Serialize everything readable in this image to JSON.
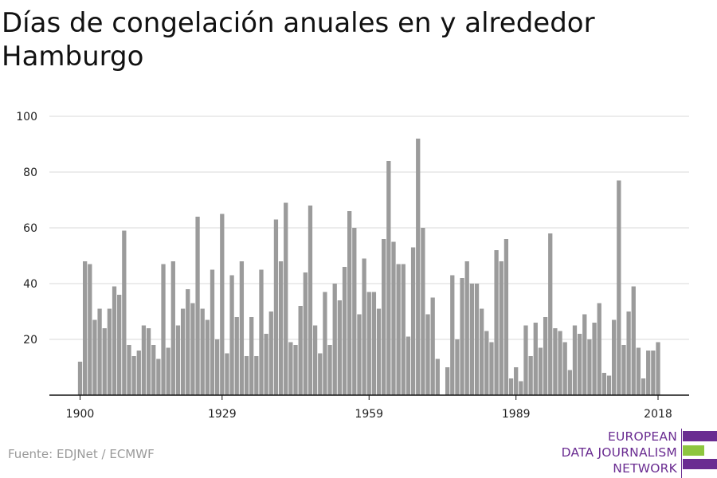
{
  "title": "Días de congelación anuales en y alrededor Hamburgo",
  "source": "Fuente: EDJNet / ECMWF",
  "logo": {
    "lines": [
      "EUROPEAN",
      "DATA JOURNALISM",
      "NETWORK"
    ],
    "colors": {
      "purple": "#6a2c91",
      "green": "#8dc63f"
    }
  },
  "colors": {
    "bar": "#9b9b9b",
    "grid": "#d9d9d9",
    "axis": "#111111"
  },
  "chart_data": {
    "type": "bar",
    "title": "Días de congelación anuales en y alrededor Hamburgo",
    "xlabel": "",
    "ylabel": "",
    "ylim": [
      0,
      100
    ],
    "yticks": [
      20,
      40,
      60,
      80,
      100
    ],
    "xticks": [
      1900,
      1929,
      1959,
      1989,
      2018
    ],
    "grid": true,
    "legend": "none",
    "x": [
      1900,
      1901,
      1902,
      1903,
      1904,
      1905,
      1906,
      1907,
      1908,
      1909,
      1910,
      1911,
      1912,
      1913,
      1914,
      1915,
      1916,
      1917,
      1918,
      1919,
      1920,
      1921,
      1922,
      1923,
      1924,
      1925,
      1926,
      1927,
      1928,
      1929,
      1930,
      1931,
      1932,
      1933,
      1934,
      1935,
      1936,
      1937,
      1938,
      1939,
      1940,
      1941,
      1942,
      1943,
      1944,
      1945,
      1946,
      1947,
      1948,
      1949,
      1950,
      1951,
      1952,
      1953,
      1954,
      1955,
      1956,
      1957,
      1958,
      1959,
      1960,
      1961,
      1962,
      1963,
      1964,
      1965,
      1966,
      1967,
      1968,
      1969,
      1970,
      1971,
      1972,
      1973,
      1974,
      1975,
      1976,
      1977,
      1978,
      1979,
      1980,
      1981,
      1982,
      1983,
      1984,
      1985,
      1986,
      1987,
      1988,
      1989,
      1990,
      1991,
      1992,
      1993,
      1994,
      1995,
      1996,
      1997,
      1998,
      1999,
      2000,
      2001,
      2002,
      2003,
      2004,
      2005,
      2006,
      2007,
      2008,
      2009,
      2010,
      2011,
      2012,
      2013,
      2014,
      2015,
      2016,
      2017,
      2018
    ],
    "values": [
      12,
      48,
      47,
      27,
      31,
      24,
      31,
      39,
      36,
      59,
      18,
      14,
      16,
      25,
      24,
      18,
      13,
      47,
      17,
      48,
      25,
      31,
      38,
      33,
      64,
      31,
      27,
      45,
      20,
      65,
      15,
      43,
      28,
      48,
      14,
      28,
      14,
      45,
      22,
      30,
      63,
      48,
      69,
      19,
      18,
      32,
      44,
      68,
      25,
      15,
      37,
      18,
      40,
      34,
      46,
      66,
      60,
      29,
      49,
      37,
      37,
      31,
      56,
      84,
      55,
      47,
      47,
      21,
      53,
      92,
      60,
      29,
      35,
      13,
      0,
      10,
      43,
      20,
      42,
      48,
      40,
      40,
      31,
      23,
      19,
      52,
      48,
      56,
      6,
      10,
      5,
      25,
      14,
      26,
      17,
      28,
      58,
      24,
      23,
      19,
      9,
      25,
      22,
      29,
      20,
      26,
      33,
      8,
      7,
      27,
      77,
      18,
      30,
      39,
      17,
      6,
      16,
      16,
      19
    ]
  }
}
